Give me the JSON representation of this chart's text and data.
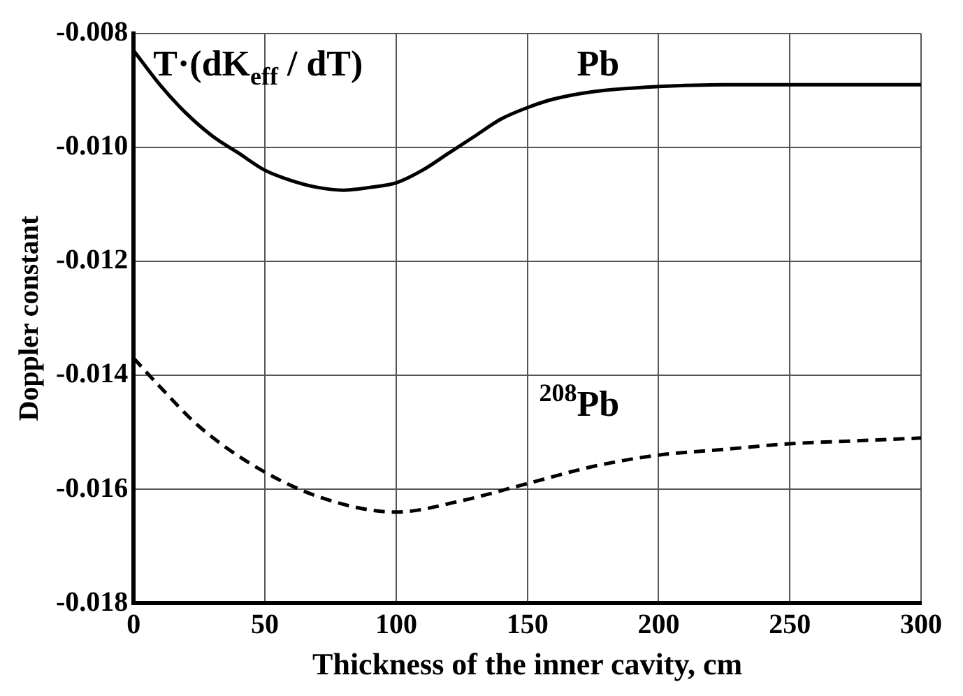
{
  "chart_data": {
    "type": "line",
    "xlabel": "Thickness of the inner cavity, cm",
    "ylabel": "Doppler constant",
    "annotations": [
      "T·(dK$_{eff}$ / dT)"
    ],
    "xlim": [
      0,
      300
    ],
    "xticks": [
      0,
      50,
      100,
      150,
      200,
      250,
      300
    ],
    "ylim": [
      -0.018,
      -0.008
    ],
    "yticks": [
      {
        "value": -0.018,
        "label": "-0.018"
      },
      {
        "value": -0.016,
        "label": "-0.016"
      },
      {
        "value": -0.014,
        "label": "-0.014"
      },
      {
        "value": -0.012,
        "label": "-0.012"
      },
      {
        "value": -0.01,
        "label": "-0.010"
      },
      {
        "value": -0.008,
        "label": "-0.008"
      }
    ],
    "grid": true,
    "legend": false,
    "marker": "none",
    "series": [
      {
        "name": "Pb",
        "color": "#000000",
        "line_style": "solid",
        "x": [
          0,
          10,
          20,
          30,
          40,
          50,
          60,
          70,
          80,
          90,
          100,
          110,
          120,
          130,
          140,
          150,
          160,
          175,
          200,
          225,
          250,
          300
        ],
        "values": [
          -0.0083,
          -0.0089,
          -0.0094,
          -0.0098,
          -0.0101,
          -0.0104,
          -0.01058,
          -0.0107,
          -0.01075,
          -0.0107,
          -0.01062,
          -0.0104,
          -0.0101,
          -0.0098,
          -0.0095,
          -0.0093,
          -0.00915,
          -0.00902,
          -0.00893,
          -0.0089,
          -0.0089,
          -0.0089
        ]
      },
      {
        "name": "$^{208}$Pb",
        "color": "#000000",
        "line_style": "dashed",
        "x": [
          0,
          10,
          25,
          50,
          75,
          100,
          125,
          150,
          175,
          200,
          225,
          250,
          275,
          300
        ],
        "values": [
          -0.0137,
          -0.0142,
          -0.0149,
          -0.0157,
          -0.0162,
          -0.0164,
          -0.0162,
          -0.0159,
          -0.0156,
          -0.0154,
          -0.0153,
          -0.0152,
          -0.01515,
          -0.0151
        ]
      }
    ]
  }
}
